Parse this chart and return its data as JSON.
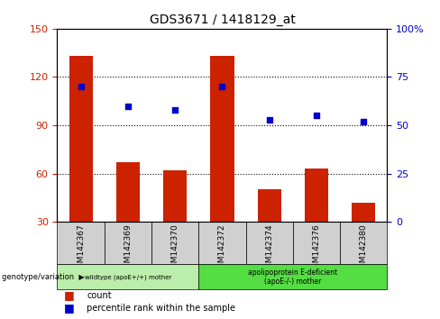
{
  "title": "GDS3671 / 1418129_at",
  "samples": [
    "GSM142367",
    "GSM142369",
    "GSM142370",
    "GSM142372",
    "GSM142374",
    "GSM142376",
    "GSM142380"
  ],
  "bar_values": [
    133,
    67,
    62,
    133,
    50,
    63,
    42
  ],
  "bar_baseline": 30,
  "percentile_values": [
    70,
    60,
    58,
    70,
    53,
    55,
    52
  ],
  "bar_color": "#cc2200",
  "dot_color": "#0000cc",
  "ylim_left": [
    30,
    150
  ],
  "ylim_right": [
    0,
    100
  ],
  "yticks_left": [
    30,
    60,
    90,
    120,
    150
  ],
  "yticks_right": [
    0,
    25,
    50,
    75,
    100
  ],
  "ytick_labels_right": [
    "0",
    "25",
    "50",
    "75",
    "100%"
  ],
  "group1_label": "wildtype (apoE+/+) mother",
  "group2_label": "apolipoprotein E-deficient\n(apoE-/-) mother",
  "group1_indices": [
    0,
    1,
    2
  ],
  "group2_indices": [
    3,
    4,
    5,
    6
  ],
  "group1_color": "#bbeeaa",
  "group2_color": "#55dd44",
  "legend_count_label": "count",
  "legend_pct_label": "percentile rank within the sample",
  "tick_color_left": "#cc2200",
  "tick_color_right": "#0000cc",
  "background_color": "#ffffff",
  "sample_bg_color": "#d0d0d0",
  "grid_color": "#000000"
}
